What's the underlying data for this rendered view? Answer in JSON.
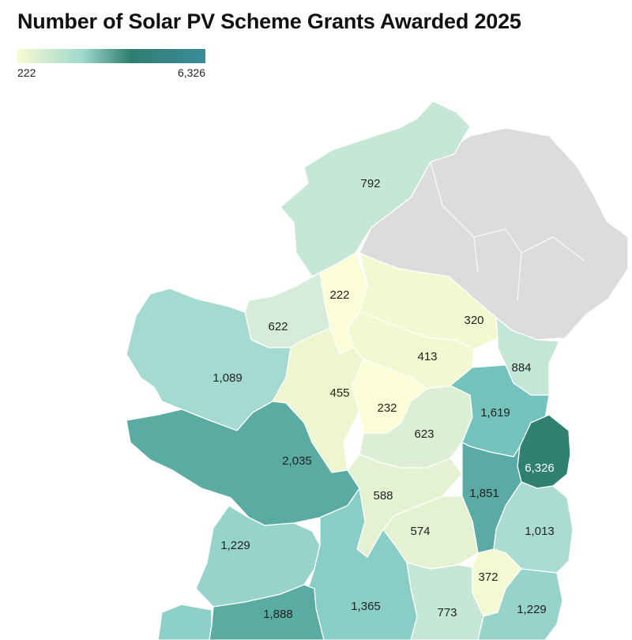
{
  "title": "Number of Solar PV Scheme Grants Awarded 2025",
  "legend": {
    "min_label": "222",
    "max_label": "6,326",
    "min": 222,
    "max": 6326
  },
  "colors": {
    "no_data": "#dcdcdc",
    "low": "#f7fbd2",
    "mid": "#9fd8cc",
    "high": "#2f8070"
  },
  "regions": [
    {
      "id": "donegal",
      "label": "792",
      "value": 792,
      "color": "#c6e7d6"
    },
    {
      "id": "leitrim",
      "label": "222",
      "value": 222,
      "color": "#fbfdd6"
    },
    {
      "id": "sligo",
      "label": "622",
      "value": 622,
      "color": "#d4ecd8"
    },
    {
      "id": "cavan",
      "label": "320",
      "value": 320,
      "color": "#f2f8d0"
    },
    {
      "id": "monaghan",
      "label": "413",
      "value": 413,
      "color": "#f2f8d0"
    },
    {
      "id": "louth",
      "label": "884",
      "value": 884,
      "color": "#c3e6d6"
    },
    {
      "id": "mayo",
      "label": "1,089",
      "value": 1089,
      "color": "#a5dad0"
    },
    {
      "id": "roscommon",
      "label": "455",
      "value": 455,
      "color": "#eef6cf"
    },
    {
      "id": "longford",
      "label": "232",
      "value": 232,
      "color": "#fbfdd6"
    },
    {
      "id": "meath",
      "label": "1,619",
      "value": 1619,
      "color": "#74c2bc"
    },
    {
      "id": "westmeath",
      "label": "623",
      "value": 623,
      "color": "#dcefd4"
    },
    {
      "id": "galway",
      "label": "2,035",
      "value": 2035,
      "color": "#5aaba2"
    },
    {
      "id": "dublin",
      "label": "6,326",
      "value": 6326,
      "color": "#2f8070"
    },
    {
      "id": "kildare",
      "label": "1,851",
      "value": 1851,
      "color": "#5aaaa6"
    },
    {
      "id": "offaly",
      "label": "588",
      "value": 588,
      "color": "#e4f2d2"
    },
    {
      "id": "laois",
      "label": "574",
      "value": 574,
      "color": "#e4f2d2"
    },
    {
      "id": "wicklow",
      "label": "1,013",
      "value": 1013,
      "color": "#abdcd1"
    },
    {
      "id": "clare",
      "label": "1,229",
      "value": 1229,
      "color": "#96d3cb"
    },
    {
      "id": "carlow",
      "label": "372",
      "value": 372,
      "color": "#f4f9d1"
    },
    {
      "id": "tipperary",
      "label": "1,365",
      "value": 1365,
      "color": "#88cdc6"
    },
    {
      "id": "limerick",
      "label": "1,888",
      "value": 1888,
      "color": "#5aaba2"
    },
    {
      "id": "kilkenny",
      "label": "773",
      "value": 773,
      "color": "#c6e7d6"
    },
    {
      "id": "wexford",
      "label": "1,229",
      "value": 1229,
      "color": "#96d3cb"
    },
    {
      "id": "kerry",
      "label": "",
      "value": null,
      "color": "#8dd0c7"
    },
    {
      "id": "cork",
      "label": "",
      "value": null,
      "color": "#a5dad0"
    },
    {
      "id": "waterford",
      "label": "",
      "value": null,
      "color": "#a5dad0"
    },
    {
      "id": "northern-ireland",
      "label": "",
      "value": null,
      "color": "#dcdcdc"
    }
  ]
}
